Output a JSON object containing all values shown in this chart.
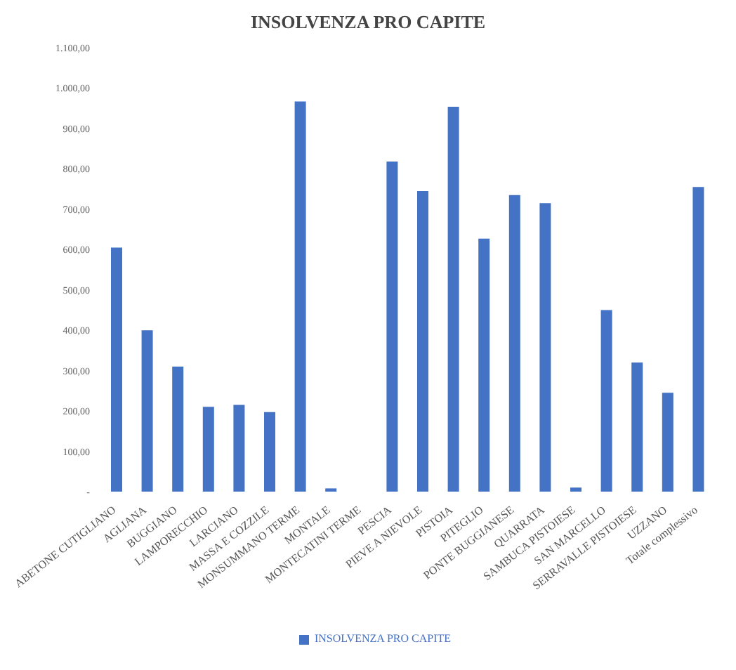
{
  "chart_data": {
    "type": "bar",
    "title": "INSOLVENZA PRO CAPITE",
    "categories": [
      "ABETONE CUTIGLIANO",
      "AGLIANA",
      "BUGGIANO",
      "LAMPORECCHIO",
      "LARCIANO",
      "MASSA E COZZILE",
      "MONSUMMANO TERME",
      "MONTALE",
      "MONTECATINI TERME",
      "PESCIA",
      "PIEVE A NIEVOLE",
      "PISTOIA",
      "PITEGLIO",
      "PONTE BUGGIANESE",
      "QUARRATA",
      "SAMBUCA PISTOIESE",
      "SAN MARCELLO",
      "SERRAVALLE PISTOIESE",
      "UZZANO",
      "Totale complessivo"
    ],
    "series": [
      {
        "name": "INSOLVENZA PRO CAPITE",
        "color": "#4472c4",
        "values": [
          605,
          400,
          310,
          210,
          215,
          197,
          967,
          8,
          0,
          818,
          745,
          954,
          627,
          735,
          715,
          10,
          450,
          320,
          245,
          755
        ]
      }
    ],
    "ylim": [
      0,
      1100
    ],
    "yticks": [
      {
        "value": 0,
        "label": "-"
      },
      {
        "value": 100,
        "label": "100,00"
      },
      {
        "value": 200,
        "label": "200,00"
      },
      {
        "value": 300,
        "label": "300,00"
      },
      {
        "value": 400,
        "label": "400,00"
      },
      {
        "value": 500,
        "label": "500,00"
      },
      {
        "value": 600,
        "label": "600,00"
      },
      {
        "value": 700,
        "label": "700,00"
      },
      {
        "value": 800,
        "label": "800,00"
      },
      {
        "value": 900,
        "label": "900,00"
      },
      {
        "value": 1000,
        "label": "1.000,00"
      },
      {
        "value": 1100,
        "label": "1.100,00"
      }
    ],
    "legend": "bottom"
  }
}
